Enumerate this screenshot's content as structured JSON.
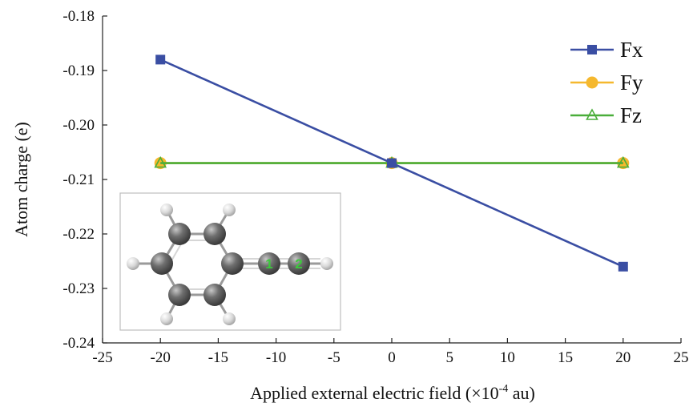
{
  "chart_data": {
    "type": "line",
    "title": "",
    "xlabel": "Applied external electric field (×10",
    "xlabel_sup": "-4",
    "xlabel_tail": " au)",
    "ylabel": "Atom charge (e)",
    "xlim": [
      -25,
      25
    ],
    "ylim": [
      -0.24,
      -0.18
    ],
    "x_ticks": [
      "-25",
      "-20",
      "-15",
      "-10",
      "-5",
      "0",
      "5",
      "10",
      "15",
      "20",
      "25"
    ],
    "y_ticks": [
      "-0.18",
      "-0.19",
      "-0.20",
      "-0.21",
      "-0.22",
      "-0.23",
      "-0.24"
    ],
    "grid": false,
    "legend_position": "top-right",
    "series": [
      {
        "name": "Fx",
        "color": "#3a4ea3",
        "marker": "square",
        "x": [
          -20,
          0,
          20
        ],
        "y": [
          -0.188,
          -0.207,
          -0.226
        ]
      },
      {
        "name": "Fy",
        "color": "#f5b82e",
        "marker": "circle",
        "x": [
          -20,
          0,
          20
        ],
        "y": [
          -0.207,
          -0.207,
          -0.207
        ]
      },
      {
        "name": "Fz",
        "color": "#4aae3a",
        "marker": "triangle-open",
        "x": [
          -20,
          0,
          20
        ],
        "y": [
          -0.207,
          -0.207,
          -0.207
        ]
      }
    ],
    "inset": {
      "description_icon": "phenylacetylene-molecule",
      "atom_labels": [
        "1",
        "2"
      ]
    }
  }
}
